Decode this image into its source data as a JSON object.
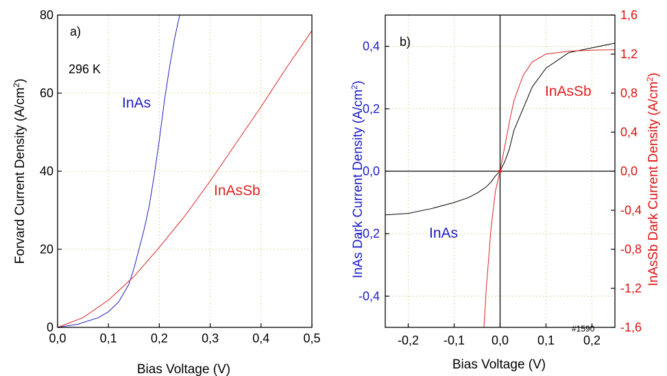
{
  "chart_data": [
    {
      "type": "line",
      "panel_label": "a)",
      "annotation": "296 K",
      "xlabel": "Bias Voltage (V)",
      "ylabel_main": "Forvard Current Density (A/cm",
      "ylabel_sup": "2",
      "ylabel_end": ")",
      "xlim": [
        0.0,
        0.5
      ],
      "ylim": [
        0,
        80
      ],
      "xticks": [
        "0,0",
        "0,1",
        "0,2",
        "0,3",
        "0,4",
        "0,5"
      ],
      "yticks": [
        "0",
        "20",
        "40",
        "60",
        "80"
      ],
      "grid": true,
      "series": [
        {
          "name": "InAs",
          "color": "#2020c0",
          "x": [
            0.0,
            0.04,
            0.08,
            0.1,
            0.12,
            0.14,
            0.15,
            0.16,
            0.17,
            0.18,
            0.19,
            0.2,
            0.21,
            0.22,
            0.23,
            0.24
          ],
          "y": [
            0.0,
            0.8,
            2.5,
            4.0,
            6.5,
            11.0,
            15.0,
            20.0,
            25.0,
            31.0,
            39.0,
            48.0,
            58.0,
            66.5,
            74.0,
            80.0
          ]
        },
        {
          "name": "InAsSb",
          "color": "#e02020",
          "x": [
            0.0,
            0.05,
            0.1,
            0.15,
            0.2,
            0.25,
            0.3,
            0.35,
            0.4,
            0.45,
            0.5
          ],
          "y": [
            0.0,
            2.5,
            7.0,
            13.0,
            20.5,
            28.5,
            37.5,
            47.0,
            56.5,
            66.5,
            76.0
          ]
        }
      ]
    },
    {
      "type": "line",
      "panel_label": "b)",
      "annotation": "#1590",
      "xlabel": "Bias Voltage (V)",
      "ylabel_left_main": "InAs Dark Current Density (A/cm",
      "ylabel_left_sup": "2",
      "ylabel_left_end": ")",
      "ylabel_right_main": "InAsSb Dark Current Density (A/cm",
      "ylabel_right_sup": "2",
      "ylabel_right_end": ")",
      "xlim": [
        -0.25,
        0.25
      ],
      "ylim_left": [
        -0.5,
        0.5
      ],
      "ylim_right": [
        -1.6,
        1.6
      ],
      "xticks": [
        "-0,2",
        "-0,1",
        "0,0",
        "0,1",
        "0,2"
      ],
      "yticks_left": [
        "-0,4",
        "-0,2",
        "0,0",
        "0,2",
        "0,4"
      ],
      "yticks_right": [
        "-1,6",
        "-1,2",
        "-0,8",
        "-0,4",
        "0,0",
        "0,4",
        "0,8",
        "1,2",
        "1,6"
      ],
      "left_axis_color": "#1a1acc",
      "right_axis_color": "#e01010",
      "grid": true,
      "series": [
        {
          "name": "InAs",
          "axis": "left",
          "color": "#000000",
          "label_color": "#1a1acc",
          "x": [
            -0.25,
            -0.2,
            -0.15,
            -0.1,
            -0.07,
            -0.05,
            -0.03,
            -0.02,
            -0.01,
            0.0,
            0.01,
            0.02,
            0.03,
            0.05,
            0.07,
            0.1,
            0.13,
            0.15,
            0.2,
            0.25
          ],
          "y": [
            -0.14,
            -0.135,
            -0.12,
            -0.1,
            -0.085,
            -0.07,
            -0.05,
            -0.035,
            -0.015,
            0.0,
            0.03,
            0.07,
            0.13,
            0.2,
            0.27,
            0.33,
            0.36,
            0.38,
            0.395,
            0.41
          ]
        },
        {
          "name": "InAsSb",
          "axis": "right",
          "color": "#e02020",
          "x": [
            -0.035,
            -0.03,
            -0.02,
            -0.01,
            0.0,
            0.01,
            0.02,
            0.03,
            0.05,
            0.07,
            0.1,
            0.15,
            0.2,
            0.25
          ],
          "y": [
            -1.6,
            -1.2,
            -0.6,
            -0.2,
            0.0,
            0.25,
            0.5,
            0.72,
            0.98,
            1.12,
            1.2,
            1.23,
            1.24,
            1.245
          ]
        }
      ]
    }
  ]
}
